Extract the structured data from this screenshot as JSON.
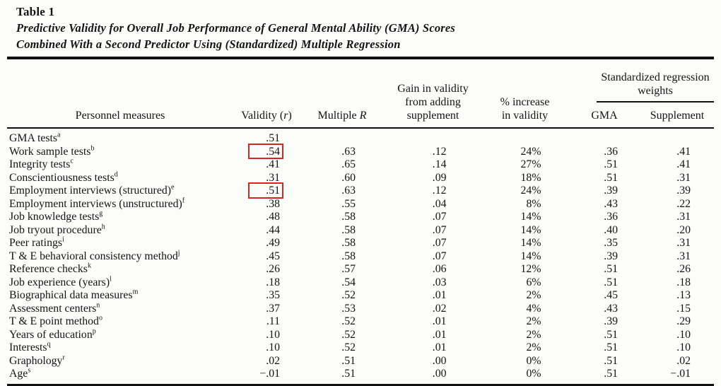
{
  "caption": {
    "label": "Table 1",
    "title_line1": "Predictive Validity for Overall Job Performance of General Mental Ability (GMA) Scores",
    "title_line2": "Combined With a Second Predictor Using (Standardized) Multiple Regression"
  },
  "header": {
    "personnel": "Personnel measures",
    "validity_prefix": "Validity (",
    "validity_var": "r",
    "validity_suffix": ")",
    "multiple_prefix": "Multiple ",
    "multiple_var": "R",
    "gain": "Gain in validity\nfrom adding\nsupplement",
    "pct_increase": "% increase\nin validity",
    "spanner": "Standardized regression\nweights",
    "gma": "GMA",
    "supplement": "Supplement"
  },
  "annotations": {
    "box_color": "#d0281e",
    "boxed_values_note": "red boxes around validity of Work sample tests and Employment interviews (structured)"
  },
  "rows": [
    {
      "measure": "GMA tests",
      "sup": "a",
      "validity": ".51",
      "validity_boxed": false,
      "multiple_r": "",
      "gain": "",
      "pct_increase": "",
      "gma_weight": "",
      "supplement_weight": ""
    },
    {
      "measure": "Work sample tests",
      "sup": "b",
      "validity": ".54",
      "validity_boxed": true,
      "multiple_r": ".63",
      "gain": ".12",
      "pct_increase": "24%",
      "gma_weight": ".36",
      "supplement_weight": ".41"
    },
    {
      "measure": "Integrity tests",
      "sup": "c",
      "validity": ".41",
      "validity_boxed": false,
      "multiple_r": ".65",
      "gain": ".14",
      "pct_increase": "27%",
      "gma_weight": ".51",
      "supplement_weight": ".41"
    },
    {
      "measure": "Conscientiousness tests",
      "sup": "d",
      "validity": ".31",
      "validity_boxed": false,
      "multiple_r": ".60",
      "gain": ".09",
      "pct_increase": "18%",
      "gma_weight": ".51",
      "supplement_weight": ".31"
    },
    {
      "measure": "Employment interviews (structured)",
      "sup": "e",
      "validity": ".51",
      "validity_boxed": true,
      "multiple_r": ".63",
      "gain": ".12",
      "pct_increase": "24%",
      "gma_weight": ".39",
      "supplement_weight": ".39"
    },
    {
      "measure": "Employment interviews (unstructured)",
      "sup": "f",
      "validity": ".38",
      "validity_boxed": false,
      "multiple_r": ".55",
      "gain": ".04",
      "pct_increase": "8%",
      "gma_weight": ".43",
      "supplement_weight": ".22"
    },
    {
      "measure": "Job knowledge tests",
      "sup": "g",
      "validity": ".48",
      "validity_boxed": false,
      "multiple_r": ".58",
      "gain": ".07",
      "pct_increase": "14%",
      "gma_weight": ".36",
      "supplement_weight": ".31"
    },
    {
      "measure": "Job tryout procedure",
      "sup": "h",
      "validity": ".44",
      "validity_boxed": false,
      "multiple_r": ".58",
      "gain": ".07",
      "pct_increase": "14%",
      "gma_weight": ".40",
      "supplement_weight": ".20"
    },
    {
      "measure": "Peer ratings",
      "sup": "i",
      "validity": ".49",
      "validity_boxed": false,
      "multiple_r": ".58",
      "gain": ".07",
      "pct_increase": "14%",
      "gma_weight": ".35",
      "supplement_weight": ".31"
    },
    {
      "measure": "T & E behavioral consistency method",
      "sup": "j",
      "validity": ".45",
      "validity_boxed": false,
      "multiple_r": ".58",
      "gain": ".07",
      "pct_increase": "14%",
      "gma_weight": ".39",
      "supplement_weight": ".31"
    },
    {
      "measure": "Reference checks",
      "sup": "k",
      "validity": ".26",
      "validity_boxed": false,
      "multiple_r": ".57",
      "gain": ".06",
      "pct_increase": "12%",
      "gma_weight": ".51",
      "supplement_weight": ".26"
    },
    {
      "measure": "Job experience (years)",
      "sup": "l",
      "validity": ".18",
      "validity_boxed": false,
      "multiple_r": ".54",
      "gain": ".03",
      "pct_increase": "6%",
      "gma_weight": ".51",
      "supplement_weight": ".18"
    },
    {
      "measure": "Biographical data measures",
      "sup": "m",
      "validity": ".35",
      "validity_boxed": false,
      "multiple_r": ".52",
      "gain": ".01",
      "pct_increase": "2%",
      "gma_weight": ".45",
      "supplement_weight": ".13"
    },
    {
      "measure": "Assessment centers",
      "sup": "n",
      "validity": ".37",
      "validity_boxed": false,
      "multiple_r": ".53",
      "gain": ".02",
      "pct_increase": "4%",
      "gma_weight": ".43",
      "supplement_weight": ".15"
    },
    {
      "measure": "T & E point method",
      "sup": "o",
      "validity": ".11",
      "validity_boxed": false,
      "multiple_r": ".52",
      "gain": ".01",
      "pct_increase": "2%",
      "gma_weight": ".39",
      "supplement_weight": ".29"
    },
    {
      "measure": "Years of education",
      "sup": "p",
      "validity": ".10",
      "validity_boxed": false,
      "multiple_r": ".52",
      "gain": ".01",
      "pct_increase": "2%",
      "gma_weight": ".51",
      "supplement_weight": ".10"
    },
    {
      "measure": "Interests",
      "sup": "q",
      "validity": ".10",
      "validity_boxed": false,
      "multiple_r": ".52",
      "gain": ".01",
      "pct_increase": "2%",
      "gma_weight": ".51",
      "supplement_weight": ".10"
    },
    {
      "measure": "Graphology",
      "sup": "r",
      "validity": ".02",
      "validity_boxed": false,
      "multiple_r": ".51",
      "gain": ".00",
      "pct_increase": "0%",
      "gma_weight": ".51",
      "supplement_weight": ".02"
    },
    {
      "measure": "Age",
      "sup": "s",
      "validity": "−.01",
      "validity_boxed": false,
      "multiple_r": ".51",
      "gain": ".00",
      "pct_increase": "0%",
      "gma_weight": ".51",
      "supplement_weight": "−.01"
    }
  ]
}
